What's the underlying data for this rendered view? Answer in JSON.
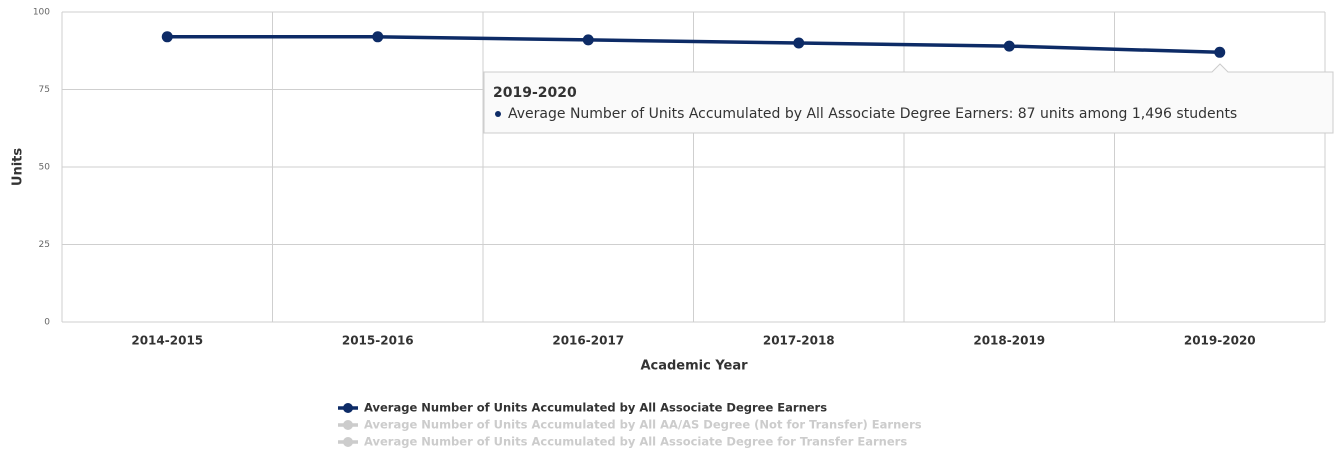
{
  "chart_data": {
    "type": "line",
    "x_label": "Academic Year",
    "y_label": "Units",
    "categories": [
      "2014-2015",
      "2015-2016",
      "2016-2017",
      "2017-2018",
      "2018-2019",
      "2019-2020"
    ],
    "series": [
      {
        "name": "Average Number of Units Accumulated by All Associate Degree Earners",
        "color": "#0d2b66",
        "visible": true,
        "values": [
          92,
          92,
          91,
          90,
          89,
          87
        ]
      },
      {
        "name": "Average Number of Units Accumulated by All AA/AS Degree (Not for Transfer) Earners",
        "color": "#cccccc",
        "visible": false,
        "values": [
          null,
          null,
          null,
          null,
          null,
          null
        ]
      },
      {
        "name": "Average Number of Units Accumulated by All Associate Degree for Transfer Earners",
        "color": "#cccccc",
        "visible": false,
        "values": [
          null,
          null,
          null,
          null,
          null,
          null
        ]
      }
    ],
    "ylim": [
      0,
      100
    ],
    "yticks": [
      0,
      25,
      50,
      75,
      100
    ],
    "grid": true,
    "tooltip": {
      "title": "2019-2020",
      "text": "Average Number of Units Accumulated by All Associate Degree Earners: 87 units among 1,496 students"
    }
  }
}
